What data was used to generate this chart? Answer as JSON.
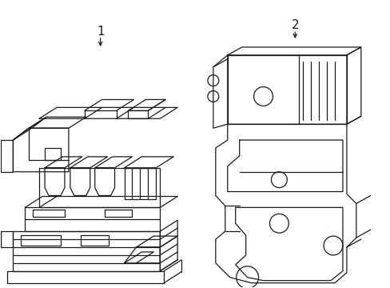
{
  "bg_color": "#ffffff",
  "line_color": "#1a1a1a",
  "lw": 0.9,
  "label1": "1",
  "label2": "2",
  "fig_w": 4.89,
  "fig_h": 3.6,
  "dpi": 100
}
